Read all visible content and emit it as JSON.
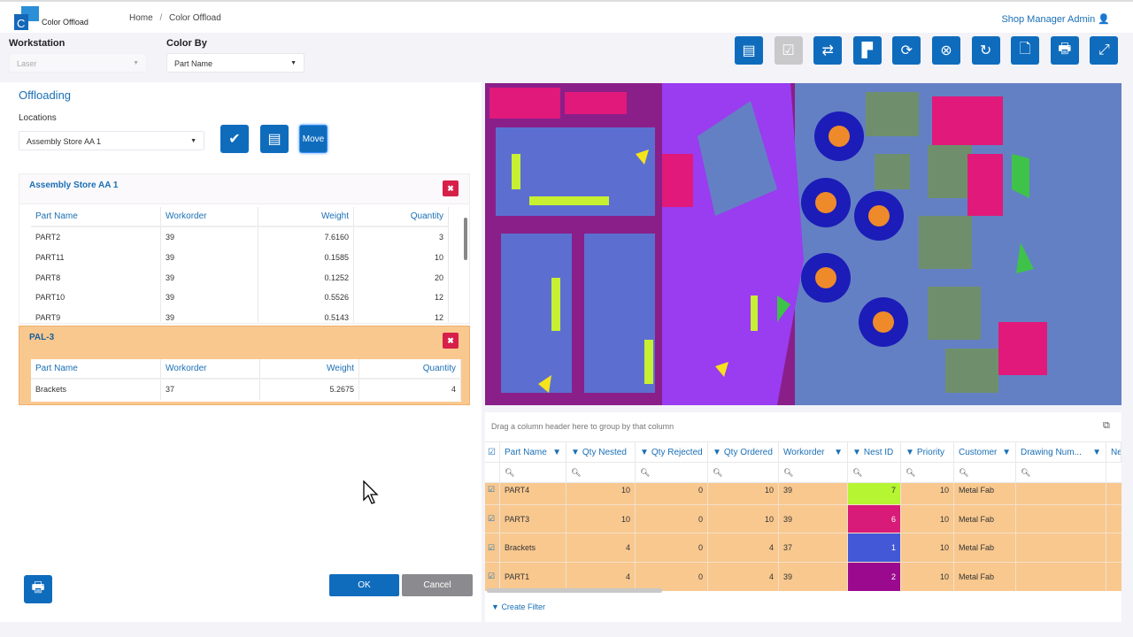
{
  "app": {
    "title": "Color Offload",
    "user": "Shop Manager Admin"
  },
  "breadcrumb": [
    "Home",
    "Color Offload"
  ],
  "workstation": {
    "label": "Workstation",
    "value": "Laser"
  },
  "color_by": {
    "label": "Color By",
    "value": "Part Name"
  },
  "toolbar": [
    "pallet-icon",
    "checkbox-icon",
    "swap-icon",
    "layout-icon",
    "refresh-icon",
    "part-remove-icon",
    "rotate-icon",
    "document-icon",
    "print-icon",
    "expand-icon"
  ],
  "offloading": {
    "title": "Offloading",
    "locations_label": "Locations",
    "location_value": "Assembly Store AA 1",
    "move_label": "Move"
  },
  "cards": [
    {
      "title": "Assembly Store AA 1",
      "headers": [
        "Part Name",
        "Workorder",
        "Weight",
        "Quantity"
      ],
      "rows": [
        [
          "PART2",
          "39",
          "7.6160",
          "3"
        ],
        [
          "PART11",
          "39",
          "0.1585",
          "10"
        ],
        [
          "PART8",
          "39",
          "0.1252",
          "20"
        ],
        [
          "PART10",
          "39",
          "0.5526",
          "12"
        ],
        [
          "PART9",
          "39",
          "0.5143",
          "12"
        ]
      ]
    },
    {
      "title": "PAL-3",
      "headers": [
        "Part Name",
        "Workorder",
        "Weight",
        "Quantity"
      ],
      "rows": [
        [
          "Brackets",
          "37",
          "5.2675",
          "4"
        ]
      ]
    }
  ],
  "buttons": {
    "ok": "OK",
    "cancel": "Cancel"
  },
  "grid": {
    "group_hint": "Drag a column header here to group by that column",
    "columns": [
      "Part Name",
      "Qty Nested",
      "Qty Rejected",
      "Qty Ordered",
      "Workorder",
      "Nest ID",
      "Priority",
      "Customer",
      "Drawing Num...",
      "Ne"
    ],
    "rows": [
      {
        "cells": [
          "PART4",
          "10",
          "0",
          "10",
          "39",
          "7",
          "10",
          "Metal Fab",
          ""
        ],
        "nest_color": "#b5f531",
        "checked": true
      },
      {
        "cells": [
          "PART3",
          "10",
          "0",
          "10",
          "39",
          "6",
          "10",
          "Metal Fab",
          ""
        ],
        "nest_color": "#d81b78",
        "checked": true
      },
      {
        "cells": [
          "Brackets",
          "4",
          "0",
          "4",
          "37",
          "1",
          "10",
          "Metal Fab",
          ""
        ],
        "nest_color": "#4358d6",
        "checked": true
      },
      {
        "cells": [
          "PART1",
          "4",
          "0",
          "4",
          "39",
          "2",
          "10",
          "Metal Fab",
          ""
        ],
        "nest_color": "#9b0a8e",
        "checked": true
      }
    ],
    "create_filter": "Create Filter"
  },
  "colors": {
    "accent": "#0f6cbd",
    "row_highlight": "#f8c88f",
    "delete": "#d6204a",
    "nest_bg": "#6480c4"
  }
}
